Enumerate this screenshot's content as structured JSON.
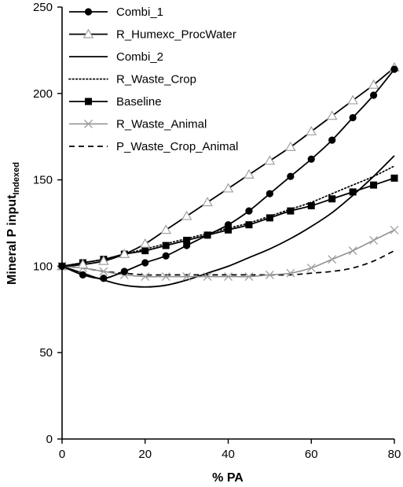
{
  "chart_data": {
    "type": "line",
    "xlabel": "% PA",
    "ylabel": "Mineral P input",
    "ylabel_subscript": "Indexed",
    "xlim": [
      0,
      80
    ],
    "ylim": [
      0,
      250
    ],
    "xticks": [
      0,
      20,
      40,
      60,
      80
    ],
    "yticks": [
      0,
      50,
      100,
      150,
      200,
      250
    ],
    "grid": false,
    "legend_position": "top-left",
    "series": [
      {
        "name": "Combi_1",
        "line": "solid",
        "marker": "filled-circle",
        "x": [
          0,
          5,
          10,
          15,
          20,
          25,
          30,
          35,
          40,
          45,
          50,
          55,
          60,
          65,
          70,
          75,
          80
        ],
        "y": [
          100,
          95,
          93,
          97,
          102,
          106,
          112,
          118,
          124,
          132,
          142,
          152,
          162,
          173,
          186,
          199,
          214
        ]
      },
      {
        "name": "R_Humexc_ProcWater",
        "line": "solid",
        "marker": "open-triangle",
        "x": [
          0,
          5,
          10,
          15,
          20,
          25,
          30,
          35,
          40,
          45,
          50,
          55,
          60,
          65,
          70,
          75,
          80
        ],
        "y": [
          100,
          101,
          103,
          107,
          113,
          121,
          129,
          137,
          145,
          153,
          161,
          169,
          178,
          187,
          196,
          205,
          215
        ]
      },
      {
        "name": "Combi_2",
        "line": "solid",
        "marker": "none",
        "x": [
          0,
          5,
          10,
          15,
          20,
          25,
          30,
          35,
          40,
          45,
          50,
          55,
          60,
          65,
          70,
          75,
          80
        ],
        "y": [
          100,
          96,
          92,
          89,
          88,
          89,
          92,
          96,
          100,
          105,
          110,
          116,
          123,
          131,
          141,
          152,
          164
        ]
      },
      {
        "name": "R_Waste_Crop",
        "line": "dotted",
        "marker": "none",
        "x": [
          0,
          5,
          10,
          15,
          20,
          25,
          30,
          35,
          40,
          45,
          50,
          55,
          60,
          65,
          70,
          75,
          80
        ],
        "y": [
          100,
          102,
          104,
          107,
          110,
          113,
          116,
          119,
          122,
          125,
          129,
          133,
          137,
          142,
          147,
          152,
          158
        ]
      },
      {
        "name": "Baseline",
        "line": "solid",
        "marker": "filled-square",
        "x": [
          0,
          5,
          10,
          15,
          20,
          25,
          30,
          35,
          40,
          45,
          50,
          55,
          60,
          65,
          70,
          75,
          80
        ],
        "y": [
          100,
          102,
          104,
          107,
          109,
          112,
          115,
          118,
          121,
          124,
          128,
          132,
          135,
          139,
          143,
          147,
          151
        ]
      },
      {
        "name": "R_Waste_Animal",
        "line": "solid-gray",
        "marker": "cross-x",
        "x": [
          0,
          5,
          10,
          15,
          20,
          25,
          30,
          35,
          40,
          45,
          50,
          55,
          60,
          65,
          70,
          75,
          80
        ],
        "y": [
          100,
          99,
          97,
          95,
          94,
          94,
          94,
          94,
          94,
          94,
          95,
          96,
          99,
          104,
          109,
          115,
          121
        ]
      },
      {
        "name": "P_Waste_Crop_Animal",
        "line": "dashed",
        "marker": "none",
        "x": [
          0,
          5,
          10,
          15,
          20,
          25,
          30,
          35,
          40,
          45,
          50,
          55,
          60,
          65,
          70,
          75,
          80
        ],
        "y": [
          100,
          99,
          97,
          96,
          95,
          95,
          95,
          95,
          95,
          95,
          95,
          95,
          96,
          97,
          99,
          103,
          109
        ]
      }
    ]
  },
  "colors": {
    "axis": "#000000",
    "line_black": "#000000",
    "line_gray": "#8c8c8c",
    "marker_gray": "#a0a0a0",
    "background": "#ffffff"
  }
}
